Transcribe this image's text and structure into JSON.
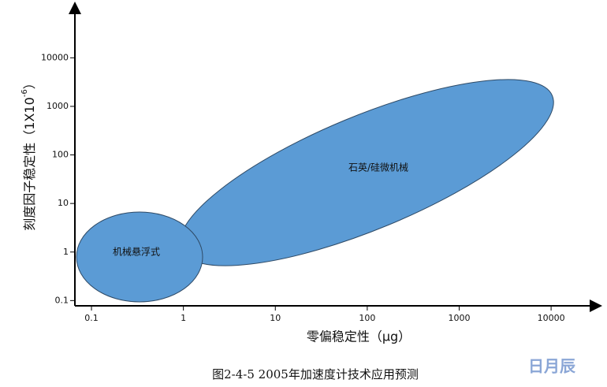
{
  "chart_data": {
    "type": "region",
    "xlabel": "零偏稳定性（μg）",
    "ylabel": {
      "text": "刻度因子稳定性（1X10",
      "superscript": "-6",
      "close": "）"
    },
    "xscale": "log",
    "yscale": "log",
    "xlim": [
      0.066,
      32000
    ],
    "ylim": [
      0.078,
      115000
    ],
    "xticks": [
      0.1,
      1,
      10,
      100,
      1000,
      10000
    ],
    "yticks": [
      0.1,
      1,
      10,
      100,
      1000,
      10000
    ],
    "regions": [
      {
        "name": "机械悬浮式",
        "color": "#5b9bd5"
      },
      {
        "name": "石英/硅微机械",
        "color": "#5b9bd5"
      }
    ],
    "caption": "图2-4-5    2005年加速度计技术应用预测",
    "watermark": "日月辰"
  }
}
